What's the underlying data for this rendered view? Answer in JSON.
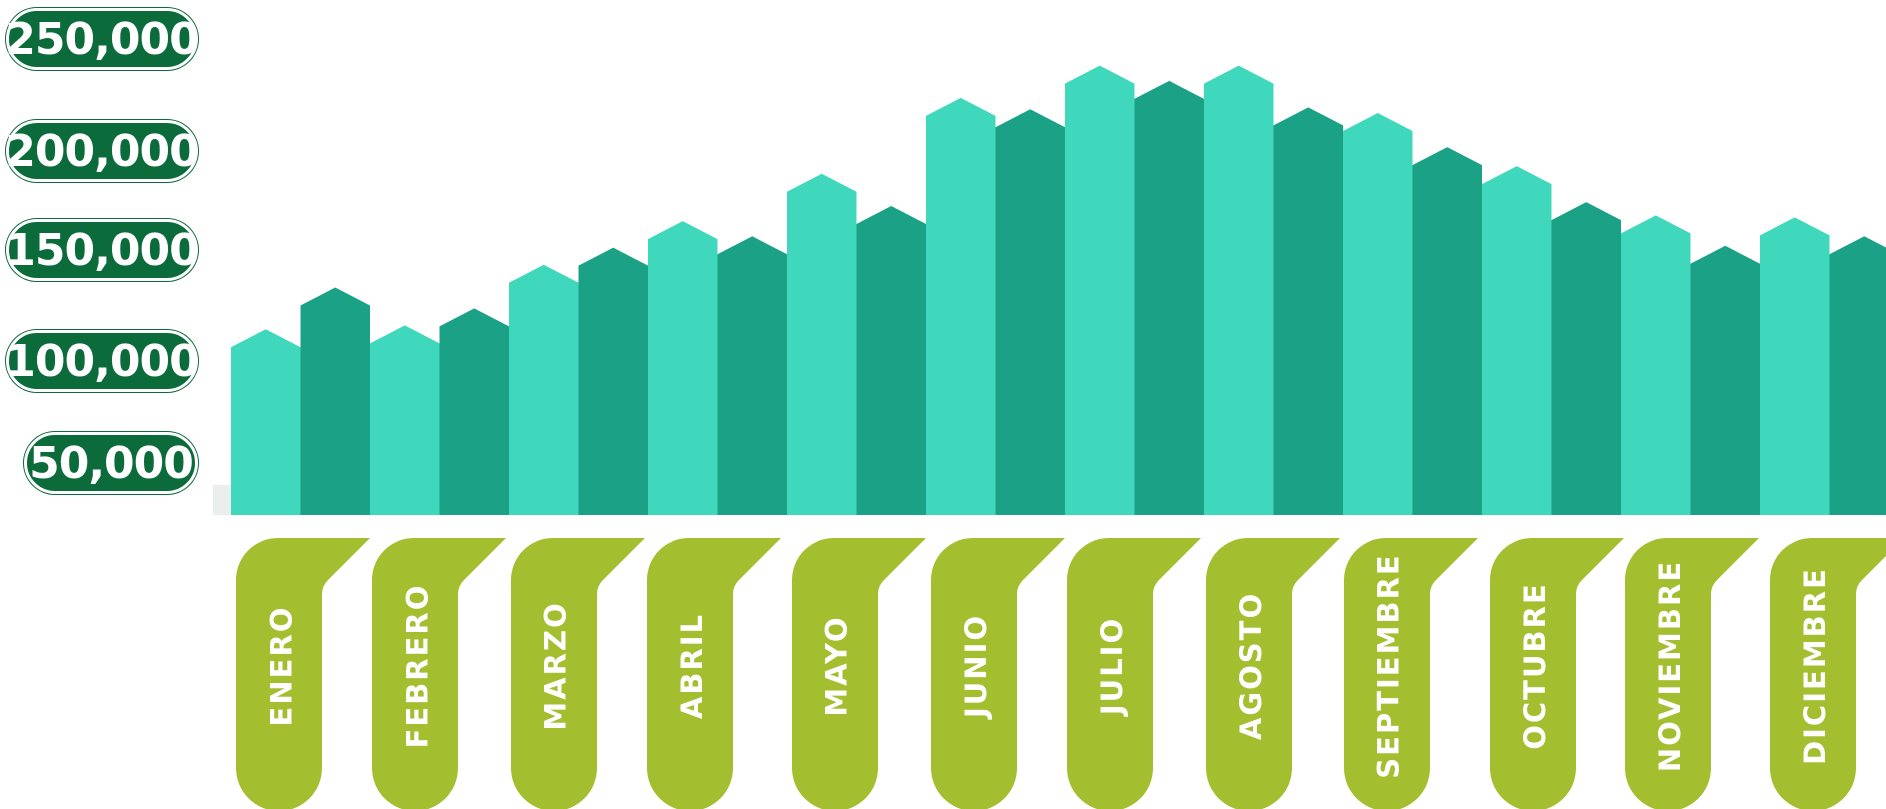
{
  "colors": {
    "bar_light": "#40d8bd",
    "bar_dark": "#1aa186",
    "pill": "#0b6b3a",
    "tag": "#a3be2e"
  },
  "chart_data": {
    "type": "bar",
    "categories": [
      "ENERO",
      "FEBRERO",
      "MARZO",
      "ABRIL",
      "MAYO",
      "JUNIO",
      "JULIO",
      "AGOSTO",
      "SEPTIEMBRE",
      "OCTUBRE",
      "NOVIEMBRE",
      "DICIEMBRE"
    ],
    "series": [
      {
        "values": [
          98000,
          100000,
          132000,
          155000,
          180000,
          220000,
          237000,
          237000,
          212000,
          184000,
          158000,
          157000
        ]
      },
      {
        "values": [
          120000,
          109000,
          141000,
          147000,
          163000,
          214000,
          229000,
          215000,
          194000,
          165000,
          142000,
          147000
        ]
      }
    ],
    "y_ticks": [
      "250,000",
      "200,000",
      "150,000",
      "100,000",
      "50,000"
    ],
    "ylim": [
      0,
      250000
    ],
    "grid": false,
    "legend": "none"
  }
}
